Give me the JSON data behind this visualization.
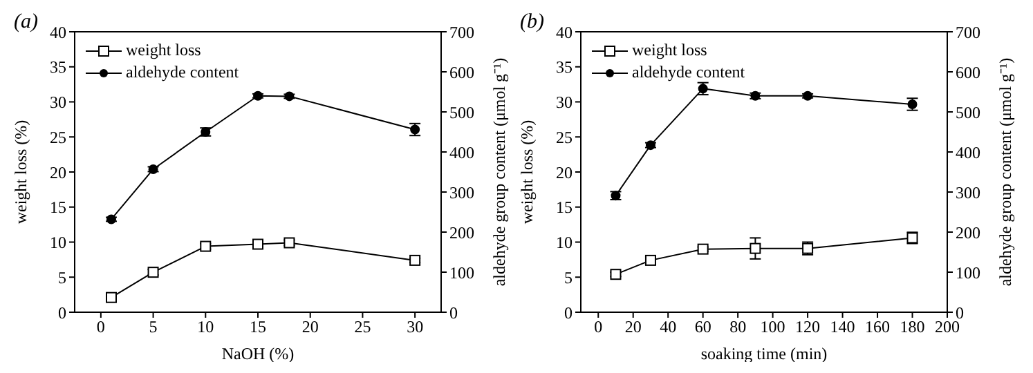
{
  "chart_data": [
    {
      "type": "line",
      "title": "(a)",
      "xlabel": "NaOH (%)",
      "ylabel": "weight loss (%)",
      "y2label": "aldehyde group content (μmol g⁻¹)",
      "xlim": [
        -2.5,
        32.5
      ],
      "xticks": [
        0,
        5,
        10,
        15,
        20,
        25,
        30
      ],
      "ylim": [
        0,
        40
      ],
      "yticks": [
        0,
        5,
        10,
        15,
        20,
        25,
        30,
        35,
        40
      ],
      "y2lim": [
        0,
        700
      ],
      "y2ticks": [
        0,
        100,
        200,
        300,
        400,
        500,
        600,
        700
      ],
      "legend": "top left",
      "grid": false,
      "x": [
        1,
        5,
        10,
        15,
        18,
        30
      ],
      "series": [
        {
          "name": "weight loss",
          "color": "#000000",
          "marker": "square",
          "values": [
            2.1,
            5.7,
            9.4,
            9.7,
            9.9,
            7.4
          ],
          "errors": [
            0.4,
            0.4,
            0.4,
            0.4,
            0.4,
            0.3
          ]
        },
        {
          "name": "aldehyde content",
          "color": "#000000",
          "marker": "circle",
          "axis": "y2",
          "values": [
            232,
            357,
            450,
            540,
            539,
            456
          ],
          "errors": [
            5,
            6,
            10,
            5,
            5,
            15
          ]
        }
      ]
    },
    {
      "type": "line",
      "title": "(b)",
      "xlabel": "soaking time (min)",
      "ylabel": "weight loss (%)",
      "y2label": "aldehyde group content (μmol g⁻¹)",
      "xlim": [
        -10,
        200
      ],
      "xticks": [
        0,
        20,
        40,
        60,
        80,
        100,
        120,
        140,
        160,
        180,
        200
      ],
      "ylim": [
        0,
        40
      ],
      "yticks": [
        0,
        5,
        10,
        15,
        20,
        25,
        30,
        35,
        40
      ],
      "y2lim": [
        0,
        700
      ],
      "y2ticks": [
        0,
        100,
        200,
        300,
        400,
        500,
        600,
        700
      ],
      "legend": "top left",
      "grid": false,
      "x": [
        10,
        30,
        60,
        90,
        120,
        180
      ],
      "series": [
        {
          "name": "weight loss",
          "color": "#000000",
          "marker": "square",
          "values": [
            5.4,
            7.4,
            9.0,
            9.1,
            9.1,
            10.6
          ],
          "errors": [
            0.3,
            0.6,
            0.3,
            1.5,
            0.9,
            0.8
          ]
        },
        {
          "name": "aldehyde content",
          "color": "#000000",
          "marker": "circle",
          "axis": "y2",
          "values": [
            291,
            417,
            558,
            540,
            540,
            519
          ],
          "errors": [
            10,
            6,
            15,
            7,
            5,
            15
          ]
        }
      ]
    }
  ]
}
